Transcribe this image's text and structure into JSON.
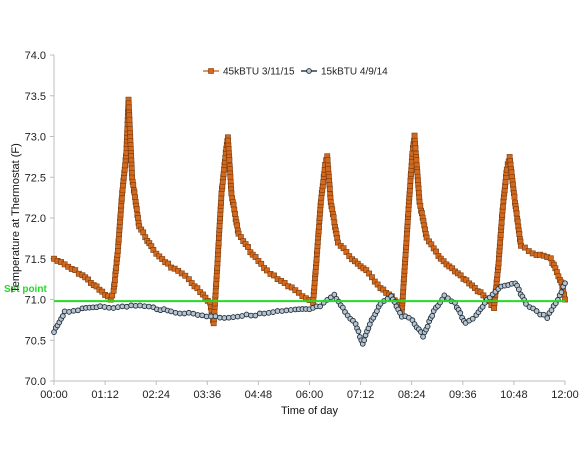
{
  "chart_data": {
    "type": "line",
    "title": "",
    "xlabel": "Time of day",
    "ylabel": "Temperature at Thermostat (F)",
    "ylim": [
      70.0,
      74.0
    ],
    "xlim_minutes": [
      0,
      720
    ],
    "yticks": [
      "70.0",
      "70.5",
      "71.0",
      "71.5",
      "72.0",
      "72.5",
      "73.0",
      "73.5",
      "74.0"
    ],
    "xticks": [
      "00:00",
      "01:12",
      "02:24",
      "03:36",
      "04:48",
      "06:00",
      "07:12",
      "08:24",
      "09:36",
      "10:48",
      "12:00"
    ],
    "grid": "none",
    "legend_position": "top-center",
    "setpoint": {
      "label": "Set point",
      "value": 70.98,
      "color": "#22dd22"
    },
    "series": [
      {
        "name": "45kBTU 3/11/15",
        "color": "#d2691e",
        "marker": "square",
        "points": [
          [
            "00:00",
            71.5
          ],
          [
            "00:20",
            71.4
          ],
          [
            "00:40",
            71.3
          ],
          [
            "01:00",
            71.15
          ],
          [
            "01:20",
            71.0
          ],
          [
            "01:24",
            71.1
          ],
          [
            "01:30",
            71.6
          ],
          [
            "01:36",
            72.3
          ],
          [
            "01:42",
            72.8
          ],
          [
            "01:45",
            73.45
          ],
          [
            "01:50",
            72.5
          ],
          [
            "02:00",
            71.9
          ],
          [
            "02:20",
            71.6
          ],
          [
            "02:45",
            71.4
          ],
          [
            "03:10",
            71.25
          ],
          [
            "03:30",
            71.05
          ],
          [
            "03:40",
            70.95
          ],
          [
            "03:45",
            70.7
          ],
          [
            "03:50",
            71.4
          ],
          [
            "03:56",
            72.3
          ],
          [
            "04:02",
            72.8
          ],
          [
            "04:05",
            73.0
          ],
          [
            "04:10",
            72.3
          ],
          [
            "04:20",
            71.8
          ],
          [
            "04:40",
            71.55
          ],
          [
            "05:00",
            71.35
          ],
          [
            "05:25",
            71.2
          ],
          [
            "05:50",
            71.05
          ],
          [
            "06:05",
            70.95
          ],
          [
            "06:10",
            71.5
          ],
          [
            "06:16",
            72.2
          ],
          [
            "06:22",
            72.65
          ],
          [
            "06:25",
            72.75
          ],
          [
            "06:30",
            72.2
          ],
          [
            "06:40",
            71.7
          ],
          [
            "07:00",
            71.5
          ],
          [
            "07:20",
            71.35
          ],
          [
            "07:40",
            71.15
          ],
          [
            "08:00",
            71.0
          ],
          [
            "08:10",
            70.85
          ],
          [
            "08:15",
            71.5
          ],
          [
            "08:21",
            72.3
          ],
          [
            "08:25",
            72.8
          ],
          [
            "08:28",
            73.0
          ],
          [
            "08:35",
            72.2
          ],
          [
            "08:45",
            71.75
          ],
          [
            "09:05",
            71.5
          ],
          [
            "09:25",
            71.35
          ],
          [
            "09:45",
            71.2
          ],
          [
            "10:05",
            71.05
          ],
          [
            "10:20",
            70.9
          ],
          [
            "10:26",
            71.4
          ],
          [
            "10:32",
            72.1
          ],
          [
            "10:38",
            72.6
          ],
          [
            "10:42",
            72.75
          ],
          [
            "10:48",
            72.3
          ],
          [
            "10:58",
            71.65
          ],
          [
            "11:20",
            71.55
          ],
          [
            "11:40",
            71.5
          ],
          [
            "11:55",
            71.2
          ],
          [
            "12:00",
            71.0
          ]
        ]
      },
      {
        "name": "15kBTU 4/9/14",
        "color": "#1f2f3d",
        "marker": "circle",
        "points": [
          [
            "00:00",
            70.6
          ],
          [
            "00:15",
            70.85
          ],
          [
            "00:40",
            70.88
          ],
          [
            "01:05",
            70.92
          ],
          [
            "01:30",
            70.9
          ],
          [
            "01:55",
            70.93
          ],
          [
            "02:20",
            70.9
          ],
          [
            "02:45",
            70.85
          ],
          [
            "03:10",
            70.83
          ],
          [
            "03:35",
            70.8
          ],
          [
            "04:00",
            70.78
          ],
          [
            "04:25",
            70.8
          ],
          [
            "04:50",
            70.82
          ],
          [
            "05:15",
            70.85
          ],
          [
            "05:40",
            70.87
          ],
          [
            "06:00",
            70.88
          ],
          [
            "06:15",
            70.92
          ],
          [
            "06:35",
            71.05
          ],
          [
            "06:50",
            70.85
          ],
          [
            "07:05",
            70.7
          ],
          [
            "07:15",
            70.45
          ],
          [
            "07:25",
            70.7
          ],
          [
            "07:40",
            70.95
          ],
          [
            "07:55",
            71.05
          ],
          [
            "08:10",
            70.8
          ],
          [
            "08:25",
            70.75
          ],
          [
            "08:40",
            70.55
          ],
          [
            "08:55",
            70.85
          ],
          [
            "09:10",
            71.05
          ],
          [
            "09:25",
            70.95
          ],
          [
            "09:40",
            70.7
          ],
          [
            "09:55",
            70.8
          ],
          [
            "10:10",
            71.0
          ],
          [
            "10:30",
            71.15
          ],
          [
            "10:50",
            71.2
          ],
          [
            "11:05",
            70.95
          ],
          [
            "11:20",
            70.85
          ],
          [
            "11:35",
            70.78
          ],
          [
            "11:50",
            71.0
          ],
          [
            "12:00",
            71.2
          ]
        ]
      }
    ]
  }
}
